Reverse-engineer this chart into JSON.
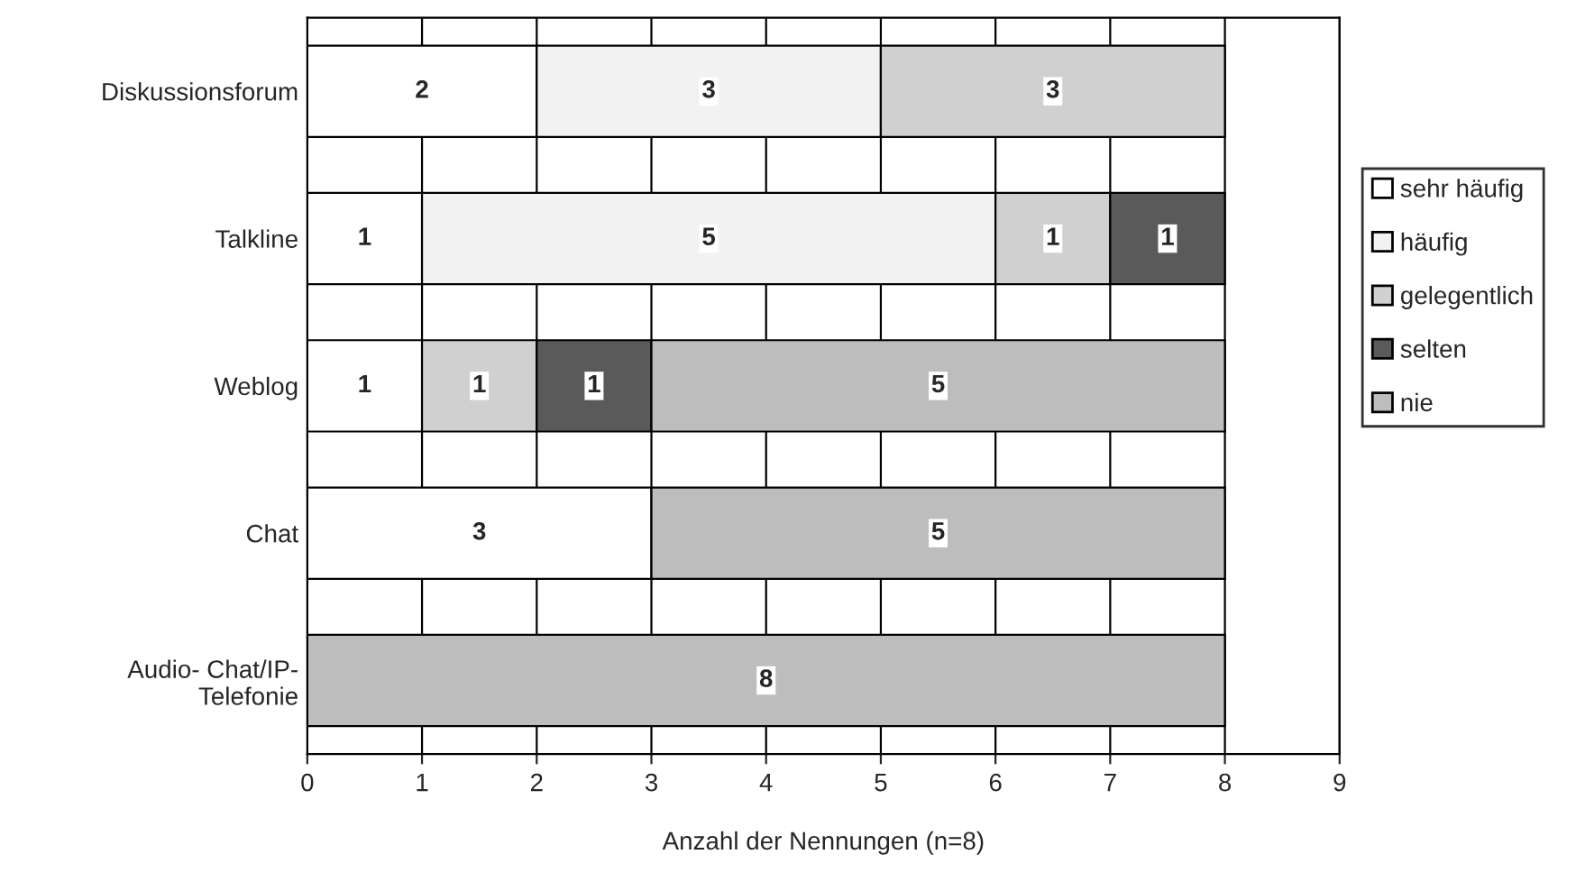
{
  "chart_data": {
    "type": "bar",
    "orientation": "horizontal",
    "stacked": true,
    "xlabel": "Anzahl der Nennungen (n=8)",
    "categories": [
      "Diskussionsforum",
      "Talkline",
      "Weblog",
      "Chat",
      "Audio- Chat/IP-\nTelefonie"
    ],
    "series": [
      {
        "name": "sehr häufig",
        "color": "#ffffff",
        "values": [
          2,
          1,
          1,
          3,
          null
        ]
      },
      {
        "name": "häufig",
        "color": "#f2f2f2",
        "values": [
          3,
          5,
          null,
          null,
          null
        ]
      },
      {
        "name": "gelegentlich",
        "color": "#d0d0d0",
        "values": [
          3,
          1,
          1,
          null,
          null
        ]
      },
      {
        "name": "selten",
        "color": "#5a5a5a",
        "values": [
          null,
          1,
          1,
          null,
          null
        ]
      },
      {
        "name": "nie",
        "color": "#bdbdbd",
        "values": [
          null,
          null,
          5,
          5,
          8
        ]
      }
    ],
    "xlim": [
      0,
      9
    ],
    "xticks": [
      0,
      1,
      2,
      3,
      4,
      5,
      6,
      7,
      8,
      9
    ],
    "grid": "x",
    "legend": "right",
    "data_labels": true
  }
}
